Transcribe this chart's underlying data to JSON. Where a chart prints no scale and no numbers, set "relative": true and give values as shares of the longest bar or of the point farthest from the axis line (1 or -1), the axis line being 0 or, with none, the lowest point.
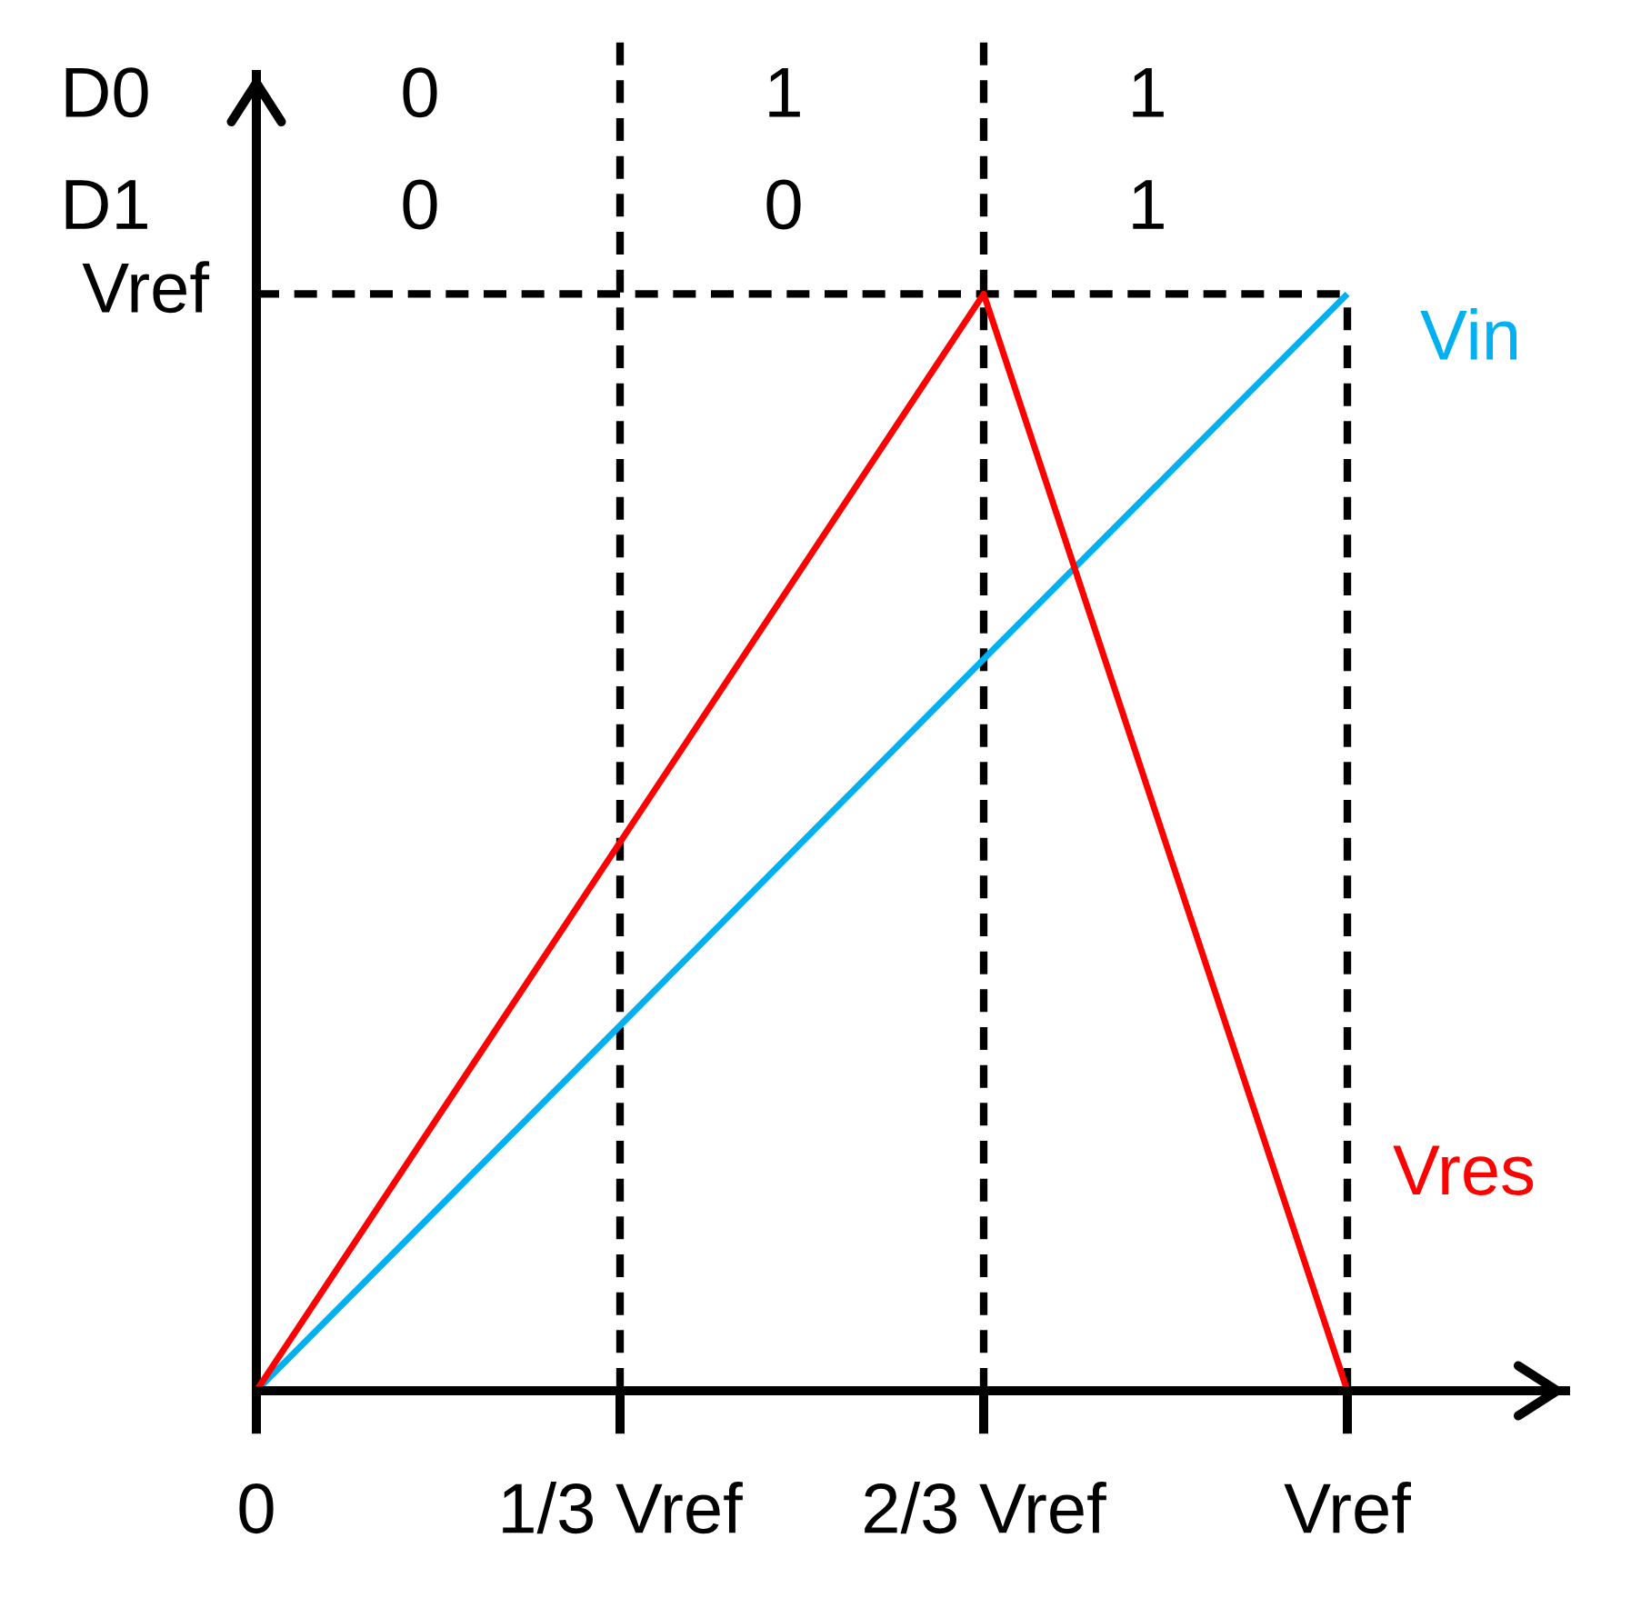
{
  "chart_data": {
    "type": "line",
    "relative": true,
    "categories": [
      "0",
      "1/3 Vref",
      "2/3 Vref",
      "Vref"
    ],
    "series": [
      {
        "color": "#000000",
        "line_style": "dashed",
        "values": [
          1,
          1,
          1,
          1
        ]
      },
      {
        "name": "Vin",
        "color": "#00b0f0",
        "values": [
          0,
          0.333,
          0.667,
          1
        ]
      },
      {
        "name": "Vres",
        "color": "#ff0000",
        "values": [
          0,
          0.5,
          1,
          0
        ]
      }
    ],
    "ref_lines": [
      {
        "axis": "x",
        "value": "0",
        "color": "#000000",
        "line_style": "solid"
      },
      {
        "axis": "x",
        "value": "1/3 Vref",
        "color": "#000000",
        "line_style": "dashed"
      },
      {
        "axis": "x",
        "value": "2/3 Vref",
        "color": "#000000",
        "line_style": "dashed"
      },
      {
        "axis": "x",
        "value": "Vref",
        "color": "#000000",
        "line_style": "dashed"
      }
    ],
    "annotations": [
      {
        "text": "Vref",
        "x": "0",
        "y": 1
      },
      "D0\nD1",
      "0\n0",
      "1\n0",
      "1\n1"
    ]
  }
}
